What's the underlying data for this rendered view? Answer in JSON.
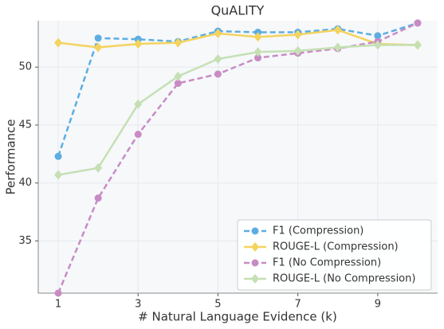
{
  "chart_data": {
    "type": "line",
    "title": "QuALITY",
    "x_label": "# Natural Language Evidence (k)",
    "y_label": "Performance",
    "x": [
      1,
      2,
      3,
      4,
      5,
      6,
      7,
      8,
      9,
      10
    ],
    "xlim": [
      0.5,
      10.5
    ],
    "xticks": [
      1,
      3,
      5,
      7,
      9
    ],
    "ylim": [
      30.5,
      54
    ],
    "yticks": [
      35,
      40,
      45,
      50
    ],
    "grid": true,
    "legend": "lower right",
    "series": [
      {
        "name": "F1 (Compression)",
        "color": "#5dade2",
        "marker": "circle",
        "dashed": true,
        "values": [
          42.3,
          52.5,
          52.4,
          52.2,
          53.1,
          53.0,
          53.0,
          53.3,
          52.7,
          53.8
        ]
      },
      {
        "name": "ROUGE-L (Compression)",
        "color": "#f4d35e",
        "marker": "diamond",
        "dashed": false,
        "values": [
          52.1,
          51.7,
          52.0,
          52.1,
          52.9,
          52.6,
          52.8,
          53.2,
          52.0,
          51.9
        ]
      },
      {
        "name": "F1 (No Compression)",
        "color": "#c98bc4",
        "marker": "circle",
        "dashed": true,
        "values": [
          30.5,
          38.7,
          44.2,
          48.6,
          49.4,
          50.8,
          51.2,
          51.6,
          52.2,
          53.8
        ]
      },
      {
        "name": "ROUGE-L (No Compression)",
        "color": "#c5e0b4",
        "marker": "diamond",
        "dashed": false,
        "values": [
          40.7,
          41.3,
          46.8,
          49.2,
          50.7,
          51.3,
          51.4,
          51.7,
          51.9,
          51.9
        ]
      }
    ]
  }
}
